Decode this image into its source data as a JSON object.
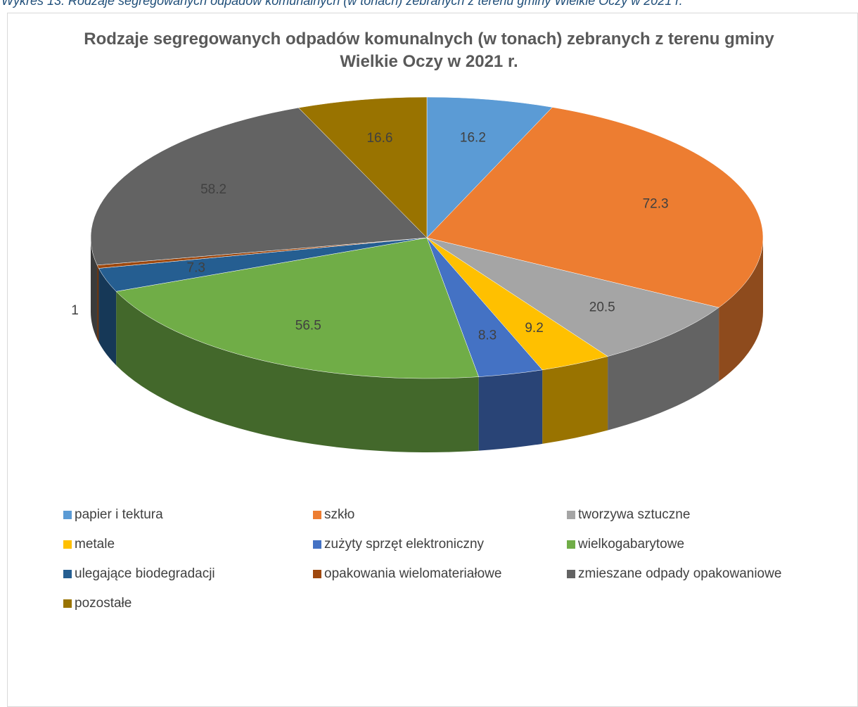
{
  "caption": "Wykres 13. Rodzaje segregowanych odpadów komunalnych (w tonach) zebranych z terenu gminy Wielkie Oczy w 2021 r.",
  "chart_data": {
    "type": "pie3d",
    "title": "Rodzaje segregowanych odpadów komunalnych (w tonach) zebranych z terenu gminy Wielkie Oczy w 2021 r.",
    "categories": [
      "papier i tektura",
      "szkło",
      "tworzywa sztuczne",
      "metale",
      "zużyty sprzęt elektroniczny",
      "wielkogabarytowe",
      "ulegające biodegradacji",
      "opakowania wielomateriałowe",
      "zmieszane odpady opakowaniowe",
      "pozostałe"
    ],
    "values": [
      16.2,
      72.3,
      20.5,
      9.2,
      8.3,
      56.5,
      7.3,
      1,
      58.2,
      16.6
    ],
    "colors": [
      "#5b9bd5",
      "#ed7d31",
      "#a5a5a5",
      "#ffc000",
      "#4472c4",
      "#70ad47",
      "#255e91",
      "#9e480e",
      "#636363",
      "#997300"
    ],
    "legend": "bottom"
  }
}
